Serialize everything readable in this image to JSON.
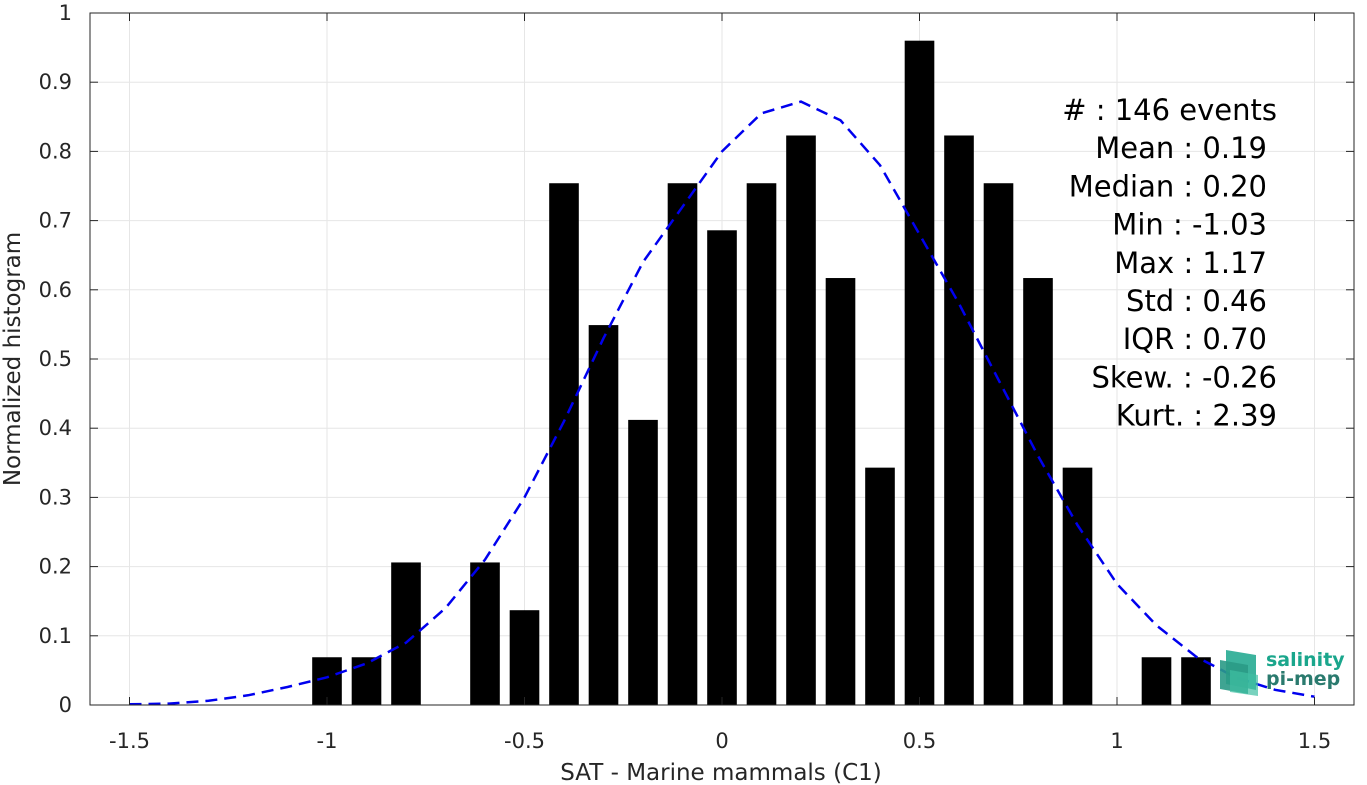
{
  "chart_data": {
    "type": "bar",
    "xlabel": "SAT - Marine mammals (C1)",
    "ylabel": "Normalized histogram",
    "xlim": [
      -1.6,
      1.6
    ],
    "ylim": [
      0,
      1
    ],
    "xticks": [
      -1.5,
      -1,
      -0.5,
      0,
      0.5,
      1,
      1.5
    ],
    "xtick_labels": [
      "-1.5",
      "-1",
      "-0.5",
      "0",
      "0.5",
      "1",
      "1.5"
    ],
    "yticks": [
      0,
      0.1,
      0.2,
      0.3,
      0.4,
      0.5,
      0.6,
      0.7,
      0.8,
      0.9,
      1
    ],
    "ytick_labels": [
      "0",
      "0.1",
      "0.2",
      "0.3",
      "0.4",
      "0.5",
      "0.6",
      "0.7",
      "0.8",
      "0.9",
      "1"
    ],
    "grid": true,
    "bar_width": 0.075,
    "bar_color": "#000000",
    "bars": {
      "x": [
        -1.0,
        -0.9,
        -0.8,
        -0.6,
        -0.5,
        -0.4,
        -0.3,
        -0.2,
        -0.1,
        0.0,
        0.1,
        0.2,
        0.3,
        0.4,
        0.5,
        0.6,
        0.7,
        0.8,
        0.9,
        1.1,
        1.2
      ],
      "values": [
        0.069,
        0.069,
        0.206,
        0.206,
        0.137,
        0.754,
        0.549,
        0.412,
        0.754,
        0.686,
        0.754,
        0.823,
        0.617,
        0.343,
        0.96,
        0.823,
        0.754,
        0.617,
        0.343,
        0.069,
        0.069
      ]
    },
    "fit_curve": {
      "style": "dashed",
      "color": "#0000ee",
      "x": [
        -1.5,
        -1.4,
        -1.3,
        -1.2,
        -1.1,
        -1.0,
        -0.9,
        -0.8,
        -0.7,
        -0.6,
        -0.5,
        -0.4,
        -0.3,
        -0.2,
        -0.1,
        0.0,
        0.1,
        0.2,
        0.3,
        0.4,
        0.5,
        0.6,
        0.7,
        0.8,
        0.9,
        1.0,
        1.1,
        1.2,
        1.3,
        1.4,
        1.5
      ],
      "y": [
        0.001,
        0.002,
        0.006,
        0.014,
        0.026,
        0.04,
        0.06,
        0.09,
        0.14,
        0.21,
        0.3,
        0.41,
        0.53,
        0.64,
        0.72,
        0.8,
        0.855,
        0.872,
        0.845,
        0.78,
        0.68,
        0.58,
        0.47,
        0.36,
        0.26,
        0.175,
        0.115,
        0.07,
        0.04,
        0.022,
        0.012
      ]
    },
    "stats": [
      "#  : 146 events",
      "Mean : 0.19",
      "Median : 0.20",
      "Min : -1.03",
      "Max : 1.17",
      "Std : 0.46",
      "IQR : 0.70",
      "Skew. : -0.26",
      "Kurt. : 2.39"
    ]
  },
  "logo": {
    "line1": "salinity",
    "line2": "pi-mep"
  },
  "colors": {
    "axis": "#262626",
    "grid": "#e6e6e6",
    "logo_teal": "#1aa68c",
    "logo_dark": "#2a7a6e"
  }
}
